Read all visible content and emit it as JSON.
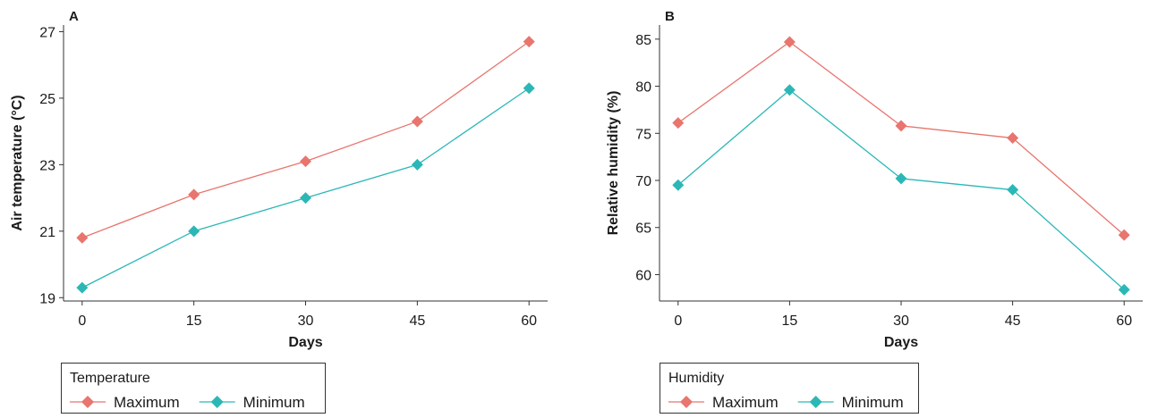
{
  "chart_data": [
    {
      "type": "line",
      "panel": "A",
      "xlabel": "Days",
      "ylabel": "Air temperature (°C)",
      "x": [
        0,
        15,
        30,
        45,
        60
      ],
      "xticks": [
        "0",
        "15",
        "30",
        "45",
        "60"
      ],
      "yticks": [
        19,
        21,
        23,
        25,
        27
      ],
      "xlim": [
        -2.5,
        62.5
      ],
      "ylim": [
        18.9,
        27.2
      ],
      "legend_title": "Temperature",
      "legend_position": "bottom-left",
      "grid": false,
      "series": [
        {
          "name": "Maximum",
          "color": "#E8756E",
          "values": [
            20.8,
            22.1,
            23.1,
            24.3,
            26.7
          ]
        },
        {
          "name": "Minimum",
          "color": "#2CB7B7",
          "values": [
            19.3,
            21.0,
            22.0,
            23.0,
            25.3
          ]
        }
      ]
    },
    {
      "type": "line",
      "panel": "B",
      "xlabel": "Days",
      "ylabel": "Relative humidity (%)",
      "x": [
        0,
        15,
        30,
        45,
        60
      ],
      "xticks": [
        "0",
        "15",
        "30",
        "45",
        "60"
      ],
      "yticks": [
        60,
        65,
        70,
        75,
        80,
        85
      ],
      "xlim": [
        -2.5,
        62.5
      ],
      "ylim": [
        57.2,
        86.5
      ],
      "legend_title": "Humidity",
      "legend_position": "bottom-left",
      "grid": false,
      "series": [
        {
          "name": "Maximum",
          "color": "#E8756E",
          "values": [
            76.1,
            84.7,
            75.8,
            74.5,
            64.2
          ]
        },
        {
          "name": "Minimum",
          "color": "#2CB7B7",
          "values": [
            69.5,
            79.6,
            70.2,
            69.0,
            58.4
          ]
        }
      ]
    }
  ]
}
